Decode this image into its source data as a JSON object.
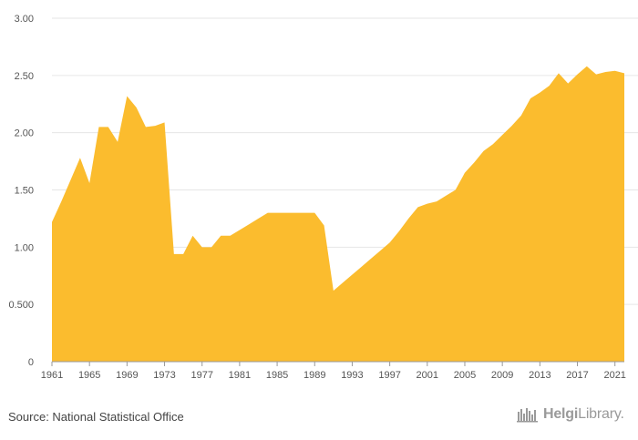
{
  "source": "Source: National Statistical Office",
  "brand": {
    "bold": "Helgi",
    "rest": "Library."
  },
  "chart_data": {
    "type": "area",
    "color": "#fbbc2e",
    "grid": true,
    "ylim": [
      0,
      3.0
    ],
    "yticks": [
      {
        "value": 0,
        "label": "0"
      },
      {
        "value": 0.5,
        "label": "0.500"
      },
      {
        "value": 1.0,
        "label": "1.00"
      },
      {
        "value": 1.5,
        "label": "1.50"
      },
      {
        "value": 2.0,
        "label": "2.00"
      },
      {
        "value": 2.5,
        "label": "2.50"
      },
      {
        "value": 3.0,
        "label": "3.00"
      }
    ],
    "xlim": [
      1961,
      2022
    ],
    "xticks": [
      1961,
      1965,
      1969,
      1973,
      1977,
      1981,
      1985,
      1989,
      1993,
      1997,
      2001,
      2005,
      2009,
      2013,
      2017,
      2021
    ],
    "x": [
      1961,
      1962,
      1963,
      1964,
      1965,
      1966,
      1967,
      1968,
      1969,
      1970,
      1971,
      1972,
      1973,
      1974,
      1975,
      1976,
      1977,
      1978,
      1979,
      1980,
      1981,
      1982,
      1983,
      1984,
      1985,
      1986,
      1987,
      1988,
      1989,
      1990,
      1991,
      1992,
      1993,
      1994,
      1995,
      1996,
      1997,
      1998,
      1999,
      2000,
      2001,
      2002,
      2003,
      2004,
      2005,
      2006,
      2007,
      2008,
      2009,
      2010,
      2011,
      2012,
      2013,
      2014,
      2015,
      2016,
      2017,
      2018,
      2019,
      2020,
      2021,
      2022
    ],
    "values": [
      1.22,
      1.4,
      1.59,
      1.78,
      1.56,
      2.05,
      2.05,
      1.92,
      2.32,
      2.22,
      2.05,
      2.06,
      2.09,
      0.94,
      0.94,
      1.1,
      1.0,
      1.0,
      1.1,
      1.1,
      1.15,
      1.2,
      1.25,
      1.3,
      1.3,
      1.3,
      1.3,
      1.3,
      1.3,
      1.19,
      0.62,
      0.69,
      0.76,
      0.83,
      0.9,
      0.97,
      1.04,
      1.14,
      1.25,
      1.35,
      1.38,
      1.4,
      1.45,
      1.5,
      1.65,
      1.74,
      1.84,
      1.9,
      1.98,
      2.06,
      2.15,
      2.3,
      2.35,
      2.41,
      2.52,
      2.43,
      2.51,
      2.58,
      2.51,
      2.53,
      2.54,
      2.52
    ]
  }
}
